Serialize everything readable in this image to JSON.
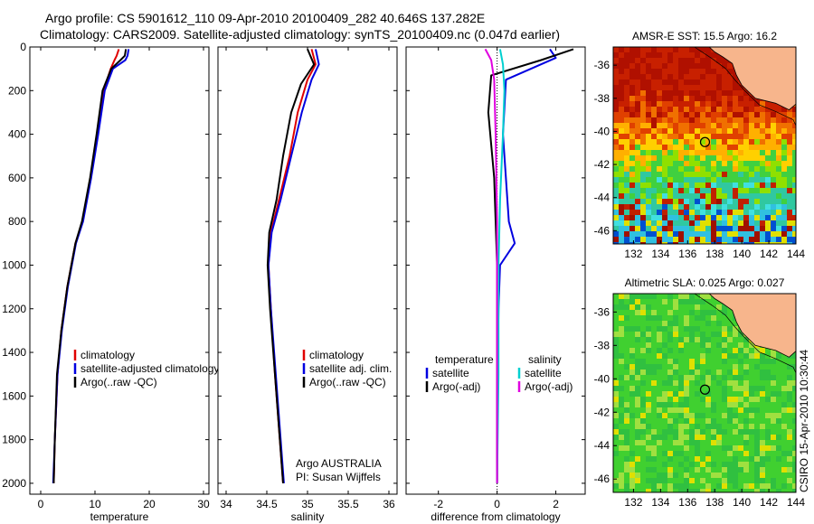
{
  "header": {
    "line1": "Argo profile: CS 5901612_110 09-Apr-2010 20100409_282 40.646S 137.282E",
    "line2": "Climatology: CARS2009. Satellite-adjusted climatology: synTS_20100409.nc (0.047d earlier)"
  },
  "side_label": "CSIRO 15-Apr-2010 10:30:44",
  "chart_data": [
    {
      "id": "temperature",
      "type": "line",
      "xlabel": "temperature",
      "xlim": [
        -2,
        31
      ],
      "ylim": [
        2050,
        0
      ],
      "xticks": [
        0,
        10,
        20,
        30
      ],
      "yticks": [
        0,
        200,
        400,
        600,
        800,
        1000,
        1200,
        1400,
        1600,
        1800,
        2000
      ],
      "legend": [
        "climatology",
        "satellite-adjusted climatology",
        "Argo(..raw -QC)"
      ],
      "series": [
        {
          "name": "climatology",
          "color": "#e00000",
          "points": [
            [
              14.4,
              10
            ],
            [
              14.0,
              40
            ],
            [
              13.6,
              60
            ],
            [
              12.9,
              100
            ],
            [
              11.6,
              200
            ],
            [
              10.4,
              400
            ],
            [
              9.2,
              600
            ],
            [
              7.7,
              800
            ],
            [
              6.4,
              900
            ],
            [
              4.9,
              1100
            ],
            [
              3.8,
              1300
            ],
            [
              3.1,
              1500
            ],
            [
              2.6,
              1800
            ],
            [
              2.4,
              2000
            ]
          ]
        },
        {
          "name": "satellite-adjusted climatology",
          "color": "#0000e0",
          "points": [
            [
              16.2,
              10
            ],
            [
              16.0,
              40
            ],
            [
              15.6,
              60
            ],
            [
              13.3,
              100
            ],
            [
              11.8,
              200
            ],
            [
              10.6,
              400
            ],
            [
              9.3,
              600
            ],
            [
              7.8,
              800
            ],
            [
              6.5,
              900
            ],
            [
              5.0,
              1100
            ],
            [
              3.9,
              1300
            ],
            [
              3.1,
              1500
            ],
            [
              2.6,
              1800
            ],
            [
              2.3,
              2000
            ]
          ]
        },
        {
          "name": "Argo(..raw -QC)",
          "color": "#000000",
          "points": [
            [
              15.7,
              10
            ],
            [
              15.5,
              40
            ],
            [
              14.7,
              60
            ],
            [
              13.0,
              100
            ],
            [
              11.4,
              200
            ],
            [
              10.3,
              400
            ],
            [
              9.1,
              600
            ],
            [
              7.6,
              800
            ],
            [
              6.4,
              900
            ],
            [
              4.9,
              1100
            ],
            [
              3.8,
              1300
            ],
            [
              3.0,
              1500
            ],
            [
              2.6,
              1800
            ],
            [
              2.4,
              2000
            ]
          ]
        }
      ]
    },
    {
      "id": "salinity",
      "type": "line",
      "xlabel": "salinity",
      "xlim": [
        33.9,
        36.1
      ],
      "ylim": [
        2050,
        0
      ],
      "xticks": [
        34,
        34.5,
        35,
        35.5,
        36
      ],
      "annotation": [
        "Argo AUSTRALIA",
        "PI: Susan Wijffels"
      ],
      "legend": [
        "climatology",
        "satellite adj. clim.",
        "Argo(..raw -QC)"
      ],
      "series": [
        {
          "name": "climatology",
          "color": "#e00000",
          "points": [
            [
              35.05,
              10
            ],
            [
              35.1,
              80
            ],
            [
              35.0,
              150
            ],
            [
              34.88,
              300
            ],
            [
              34.78,
              500
            ],
            [
              34.65,
              700
            ],
            [
              34.55,
              850
            ],
            [
              34.52,
              1000
            ],
            [
              34.55,
              1200
            ],
            [
              34.6,
              1500
            ],
            [
              34.66,
              1800
            ],
            [
              34.7,
              2000
            ]
          ]
        },
        {
          "name": "satellite adj. clim.",
          "color": "#0000e0",
          "points": [
            [
              35.1,
              10
            ],
            [
              35.14,
              80
            ],
            [
              35.05,
              150
            ],
            [
              34.93,
              300
            ],
            [
              34.8,
              500
            ],
            [
              34.67,
              700
            ],
            [
              34.56,
              850
            ],
            [
              34.52,
              1000
            ],
            [
              34.55,
              1200
            ],
            [
              34.61,
              1500
            ],
            [
              34.67,
              1800
            ],
            [
              34.71,
              2000
            ]
          ]
        },
        {
          "name": "Argo(..raw -QC)",
          "color": "#000000",
          "points": [
            [
              35.0,
              10
            ],
            [
              35.08,
              80
            ],
            [
              34.92,
              170
            ],
            [
              34.8,
              300
            ],
            [
              34.7,
              500
            ],
            [
              34.62,
              700
            ],
            [
              34.53,
              850
            ],
            [
              34.51,
              1000
            ],
            [
              34.54,
              1200
            ],
            [
              34.6,
              1500
            ],
            [
              34.66,
              1800
            ],
            [
              34.7,
              2000
            ]
          ]
        }
      ]
    },
    {
      "id": "difference",
      "type": "line",
      "xlabel": "difference from climatology",
      "xlim": [
        -3.1,
        3.0
      ],
      "ylim": [
        2050,
        0
      ],
      "xticks": [
        -2,
        0,
        2
      ],
      "legend_headers": [
        "temperature",
        "salinity"
      ],
      "legend": [
        "satellite",
        "Argo(-adj)",
        "satellite",
        "Argo(-adj)"
      ],
      "series": [
        {
          "name": "satellite",
          "quantity": "temperature",
          "color": "#0000e0",
          "points": [
            [
              1.8,
              10
            ],
            [
              2.0,
              50
            ],
            [
              0.3,
              150
            ],
            [
              0.2,
              400
            ],
            [
              0.4,
              800
            ],
            [
              0.6,
              900
            ],
            [
              0.1,
              1000
            ],
            [
              0.05,
              1200
            ],
            [
              0.0,
              1600
            ],
            [
              0.0,
              2000
            ]
          ]
        },
        {
          "name": "Argo(-adj)",
          "quantity": "temperature",
          "color": "#000000",
          "points": [
            [
              2.6,
              10
            ],
            [
              1.5,
              60
            ],
            [
              -0.2,
              130
            ],
            [
              -0.3,
              300
            ],
            [
              -0.1,
              600
            ],
            [
              -0.05,
              800
            ],
            [
              0.0,
              1000
            ],
            [
              0.0,
              1500
            ],
            [
              0.0,
              2000
            ]
          ]
        },
        {
          "name": "satellite",
          "quantity": "salinity",
          "color": "#00d0d0",
          "points": [
            [
              0.1,
              10
            ],
            [
              0.2,
              80
            ],
            [
              0.25,
              200
            ],
            [
              0.2,
              400
            ],
            [
              0.1,
              700
            ],
            [
              0.05,
              1000
            ],
            [
              0.05,
              1500
            ],
            [
              0.0,
              2000
            ]
          ]
        },
        {
          "name": "Argo(-adj)",
          "quantity": "salinity",
          "color": "#e000e0",
          "points": [
            [
              -0.4,
              10
            ],
            [
              -0.2,
              60
            ],
            [
              -0.1,
              150
            ],
            [
              -0.05,
              400
            ],
            [
              0.0,
              800
            ],
            [
              0.0,
              1200
            ],
            [
              0.0,
              2000
            ]
          ]
        }
      ]
    },
    {
      "id": "sst-map",
      "type": "heatmap",
      "title": "AMSR-E SST: 15.5 Argo: 16.2",
      "xticks": [
        132,
        134,
        136,
        138,
        140,
        142,
        144
      ],
      "yticks": [
        -36,
        -38,
        -40,
        -42,
        -44,
        -46
      ],
      "xlim": [
        130.5,
        144
      ],
      "ylim": [
        -46.8,
        -34.9
      ],
      "marker": [
        137.282,
        -40.646
      ],
      "sst": 15.5,
      "argo": 16.2
    },
    {
      "id": "sla-map",
      "type": "heatmap",
      "title": "Altimetric SLA: 0.025 Argo: 0.027",
      "xticks": [
        132,
        134,
        136,
        138,
        140,
        142,
        144
      ],
      "yticks": [
        -36,
        -38,
        -40,
        -42,
        -44,
        -46
      ],
      "xlim": [
        130.5,
        144
      ],
      "ylim": [
        -46.8,
        -34.9
      ],
      "marker": [
        137.282,
        -40.646
      ],
      "sla": 0.025,
      "argo": 0.027
    }
  ]
}
